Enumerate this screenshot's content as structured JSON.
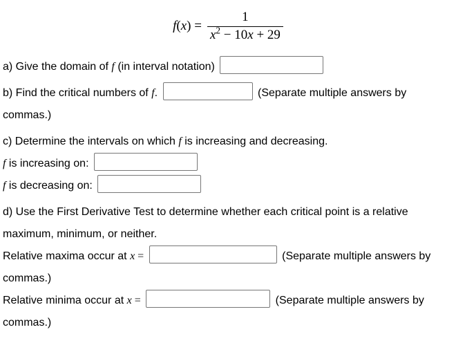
{
  "equation": {
    "lhs_f": "f",
    "lhs_open": "(",
    "lhs_x": "x",
    "lhs_close": ") =",
    "numerator": "1",
    "den_x": "x",
    "den_exp": "2",
    "den_minus": " − 10",
    "den_x2": "x",
    "den_plus": " + 29"
  },
  "a": {
    "prefix": "a) Give the domain of ",
    "fvar": "f",
    "suffix": " (in interval notation)"
  },
  "b": {
    "prefix": "b) Find the critical numbers of ",
    "fvar": "f",
    "period": ".",
    "hint": "(Separate multiple answers by commas.)"
  },
  "c": {
    "line1_pre": "c) Determine the intervals on which ",
    "fvar": "f",
    "line1_post": " is increasing and decreasing.",
    "inc_pre_f": "f",
    "inc_post": " is increasing on:",
    "dec_pre_f": "f",
    "dec_post": " is decreasing on:"
  },
  "d": {
    "line1": "d) Use the First Derivative Test to determine whether each critical point is a relative maximum, minimum, or neither.",
    "max_pre": "Relative maxima occur at ",
    "xvar": "x",
    "equals": " =",
    "hint": "(Separate multiple answers by commas.)",
    "min_pre": "Relative minima occur at "
  }
}
